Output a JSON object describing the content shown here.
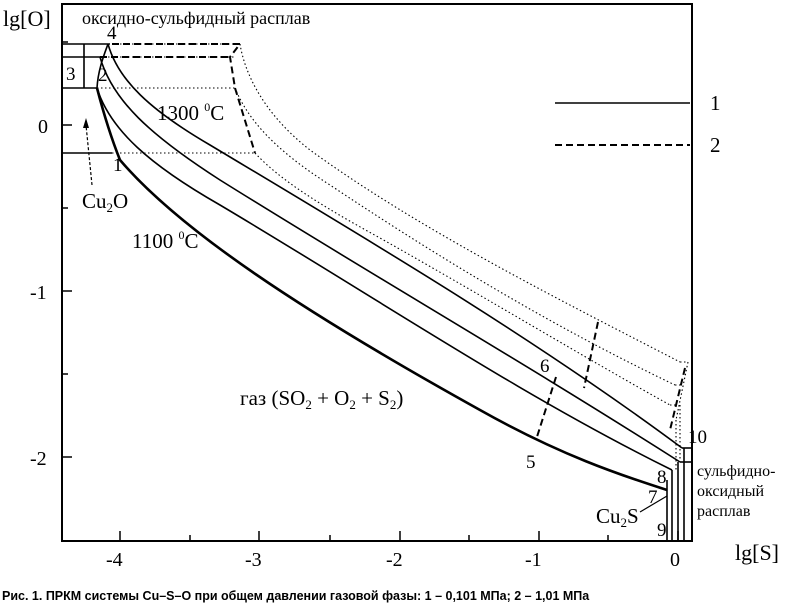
{
  "axes": {
    "y_label": "lg[O]",
    "x_label": "lg[S]",
    "y_ticks": [
      "0",
      "-1",
      "-2"
    ],
    "x_ticks": [
      "-4",
      "-3",
      "-2",
      "-1",
      "0"
    ]
  },
  "regions": {
    "top_melt": "оксидно-сульфидный расплав",
    "gas": "газ (SO",
    "gas_sub1": "2",
    "gas_mid1": " + O",
    "gas_sub2": "2",
    "gas_mid2": " + S",
    "gas_sub3": "2",
    "gas_end": ")",
    "right_melt_line1": "сульфидно-",
    "right_melt_line2": "оксидный",
    "right_melt_line3": "расплав",
    "cu2o_main": "Cu",
    "cu2o_sub": "2",
    "cu2o_end": "O",
    "cu2s_main": "Cu",
    "cu2s_sub": "2",
    "cu2s_end": "S"
  },
  "temperatures": {
    "t1300_value": "1300 ",
    "t1300_sup": "0",
    "t1300_unit": "C",
    "t1100_value": "1100 ",
    "t1100_sup": "0",
    "t1100_unit": "C"
  },
  "point_labels": [
    "1",
    "2",
    "3",
    "4",
    "5",
    "6",
    "7",
    "8",
    "9",
    "10"
  ],
  "legend": {
    "solid_label": "1",
    "dashed_label": "2"
  },
  "caption": "Рис. 1. ПРКМ системы Cu–S–O при общем давлении газовой фазы: 1 – 0,101 МПа; 2 – 1,01 МПа"
}
